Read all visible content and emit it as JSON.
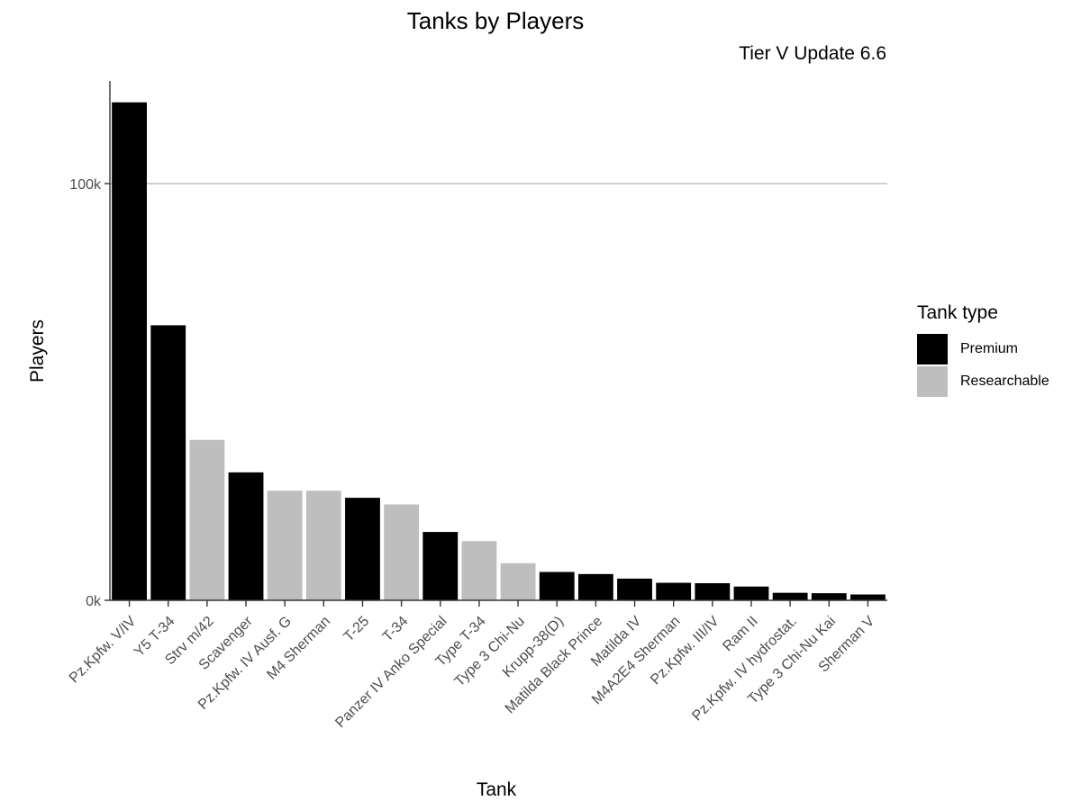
{
  "chart_data": {
    "type": "bar",
    "title": "Tanks by Players",
    "subtitle": "Tier V Update 6.6",
    "xlabel": "Tank",
    "ylabel": "Players",
    "ylim": [
      0,
      120000
    ],
    "y_ticks": [
      {
        "value": 0,
        "label": "0k"
      },
      {
        "value": 100000,
        "label": "100k"
      }
    ],
    "grid": "horizontal major only",
    "legend_position": "right",
    "legend_title": "Tank type",
    "legend": [
      {
        "label": "Premium",
        "color": "#000000"
      },
      {
        "label": "Researchable",
        "color": "#bebebe"
      }
    ],
    "categories": [
      "Pz.Kpfw. V/IV",
      "Y5 T-34",
      "Strv m/42",
      "Scavenger",
      "Pz.Kpfw. IV Ausf. G",
      "M4 Sherman",
      "T-25",
      "T-34",
      "Panzer IV Anko Special",
      "Type T-34",
      "Type 3 Chi-Nu",
      "Krupp-38(D)",
      "Matilda Black Prince",
      "Matilda IV",
      "M4A2E4 Sherman",
      "Pz.Kpfw. III/IV",
      "Ram II",
      "Pz.Kpfw. IV hydrostat.",
      "Type 3 Chi-Nu Kai",
      "Sherman V"
    ],
    "values": [
      119500,
      66000,
      38500,
      30700,
      26300,
      26300,
      24600,
      23000,
      16400,
      14200,
      8900,
      6800,
      6300,
      5200,
      4200,
      4100,
      3300,
      1800,
      1700,
      1400
    ],
    "types": [
      "Premium",
      "Premium",
      "Researchable",
      "Premium",
      "Researchable",
      "Researchable",
      "Premium",
      "Researchable",
      "Premium",
      "Researchable",
      "Researchable",
      "Premium",
      "Premium",
      "Premium",
      "Premium",
      "Premium",
      "Premium",
      "Premium",
      "Premium",
      "Premium"
    ]
  }
}
